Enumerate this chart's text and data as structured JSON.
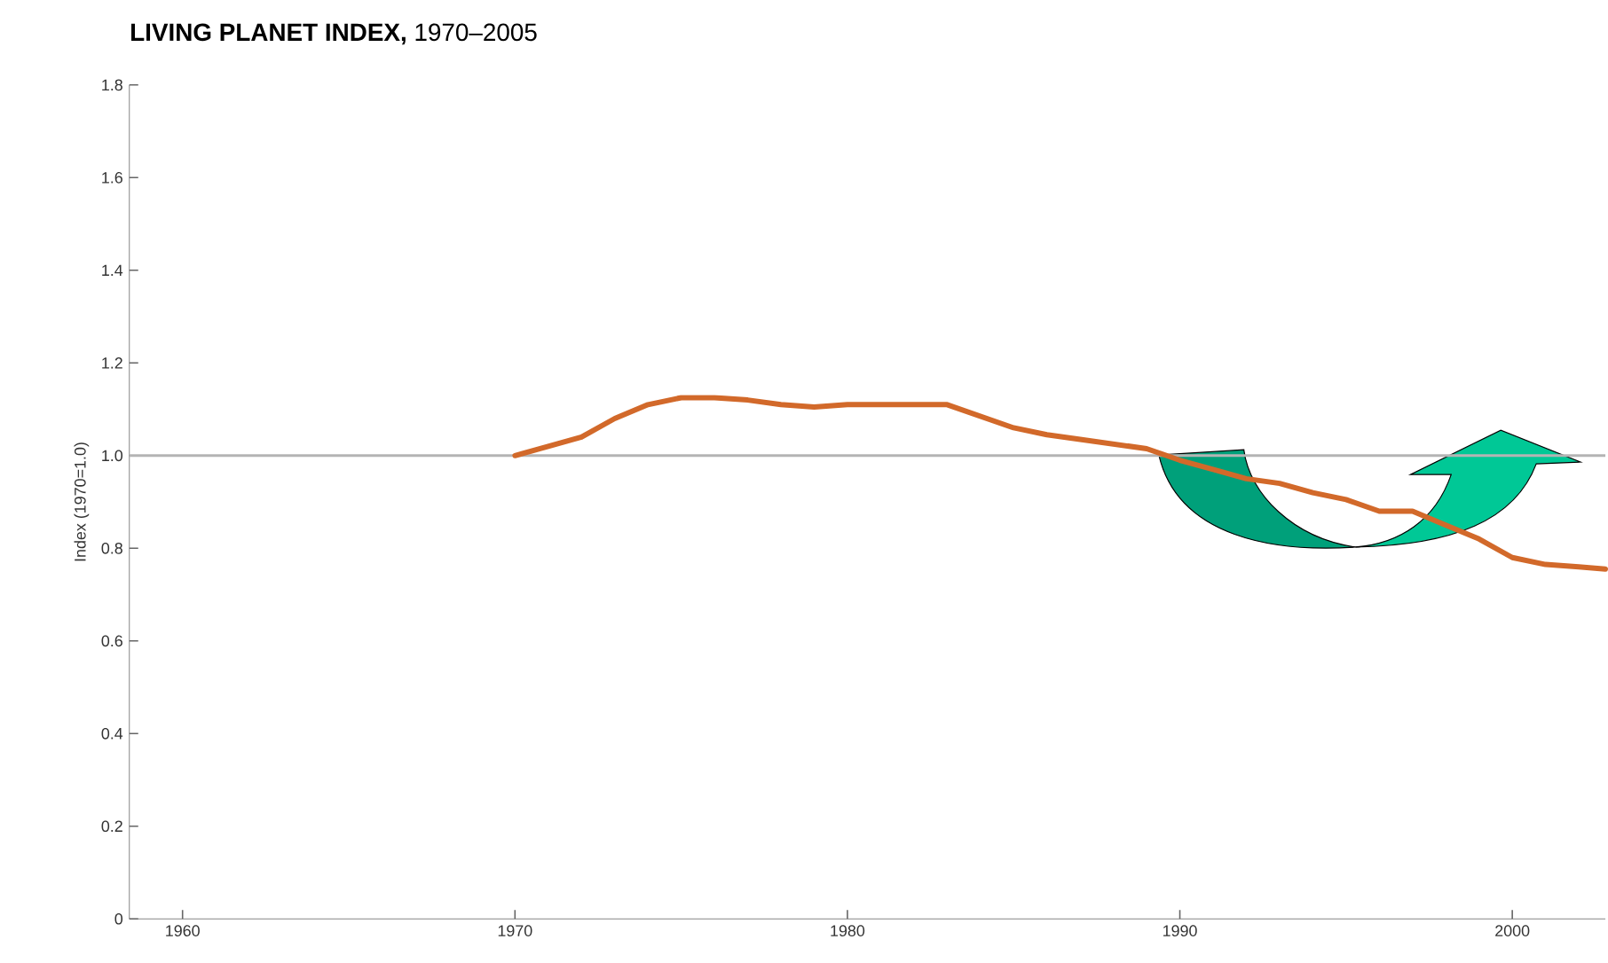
{
  "chart_data": {
    "type": "line",
    "title": "**LIVING PLANET INDEX,** 1970–2005",
    "ylabel": "Index (1970=1.0)",
    "x": [
      1970,
      1971,
      1972,
      1973,
      1974,
      1975,
      1976,
      1977,
      1978,
      1979,
      1980,
      1981,
      1982,
      1983,
      1984,
      1985,
      1986,
      1987,
      1988,
      1989,
      1990,
      1991,
      1992,
      1993,
      1994,
      1995,
      1996,
      1997,
      1998,
      1999,
      2000,
      2001,
      2002,
      2002.8
    ],
    "values": [
      1.0,
      1.02,
      1.04,
      1.08,
      1.11,
      1.125,
      1.125,
      1.12,
      1.11,
      1.105,
      1.11,
      1.11,
      1.11,
      1.11,
      1.085,
      1.06,
      1.045,
      1.035,
      1.025,
      1.015,
      0.99,
      0.97,
      0.95,
      0.94,
      0.92,
      0.905,
      0.88,
      0.88,
      0.85,
      0.82,
      0.78,
      0.765,
      0.76,
      0.755
    ],
    "color": "#d2692a",
    "xlim": [
      1958.4,
      2002.8
    ],
    "xticks": [
      1960,
      1970,
      1980,
      1990,
      2000
    ],
    "ylim": [
      0,
      1.8
    ],
    "yticks": [
      0,
      0.2,
      0.4,
      0.6,
      0.8,
      {
        "value": 1.0,
        "label": "1.0"
      },
      1.2,
      1.4,
      1.6,
      1.8
    ],
    "ref_lines": [
      {
        "axis": "y",
        "value": 1.0,
        "color": "#b4b4b4"
      }
    ]
  }
}
